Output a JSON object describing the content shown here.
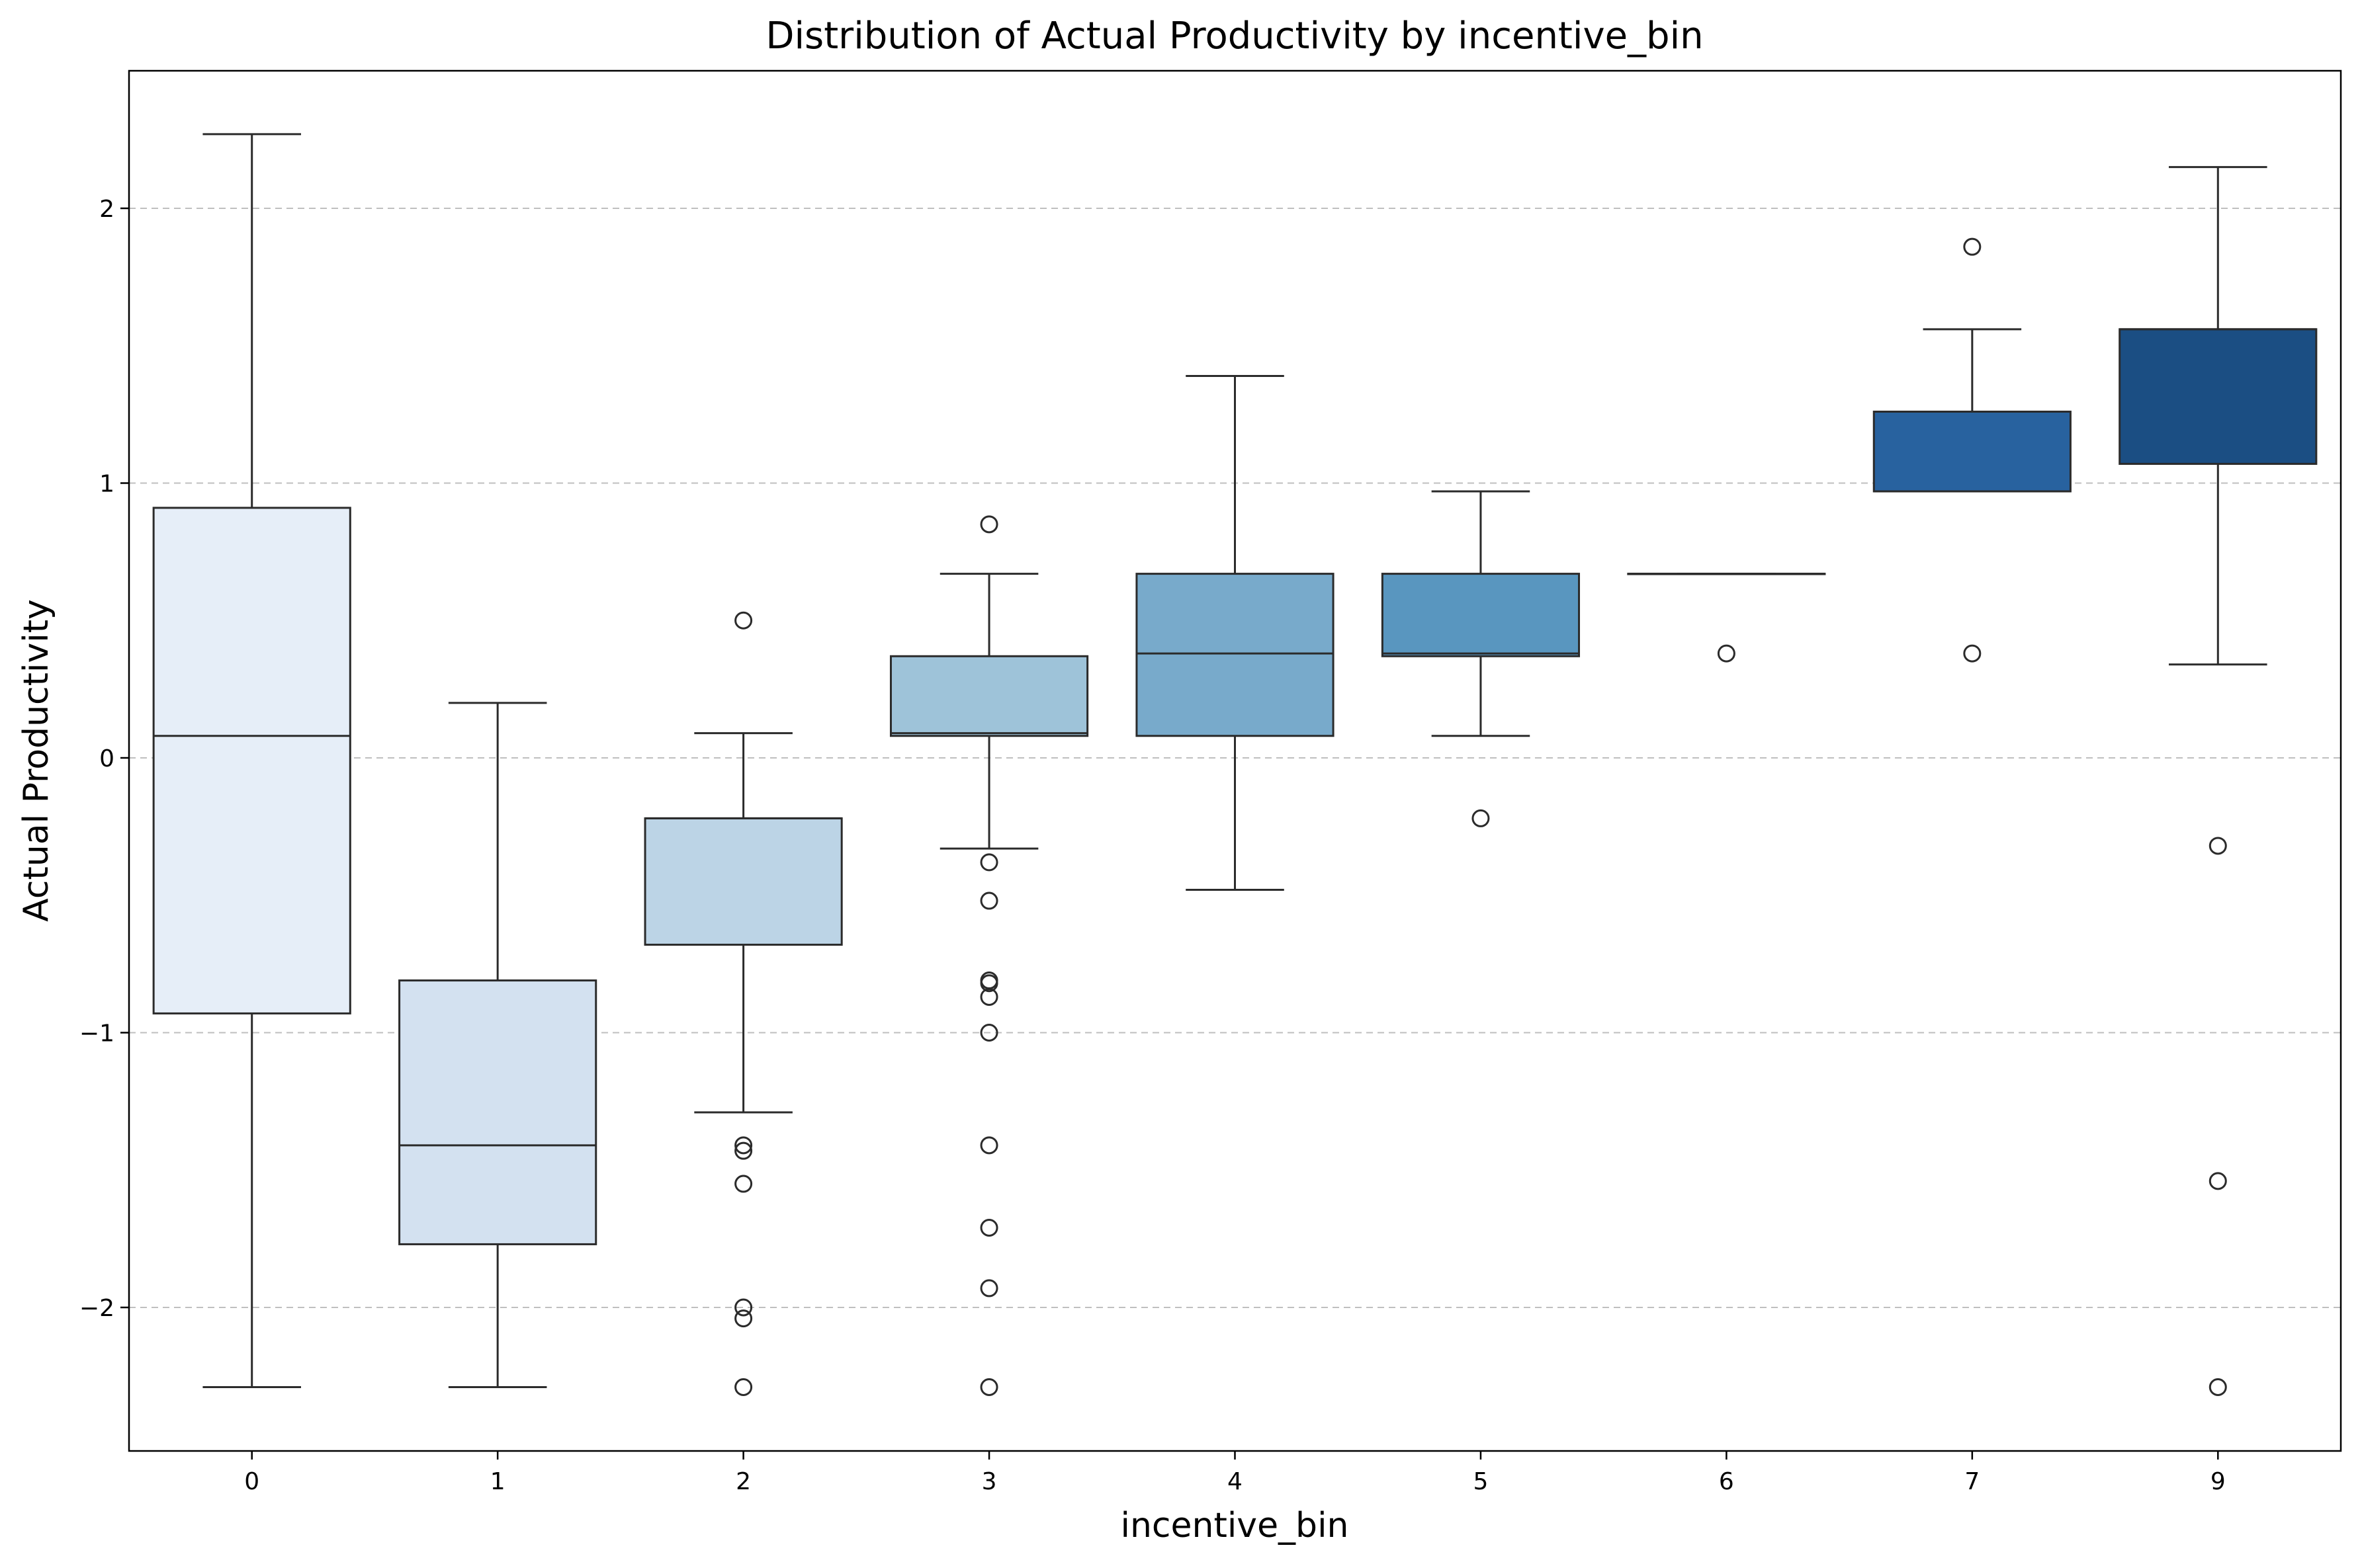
{
  "chart_data": {
    "type": "box",
    "title": "Distribution of Actual Productivity by incentive_bin",
    "xlabel": "incentive_bin",
    "ylabel": "Actual Productivity",
    "ylim": [
      -2.52,
      2.5
    ],
    "yticks": [
      -2,
      -1,
      0,
      1,
      2
    ],
    "ytick_labels": [
      "−2",
      "−1",
      "0",
      "1",
      "2"
    ],
    "grid": "y-dashed",
    "categories": [
      "0",
      "1",
      "2",
      "3",
      "4",
      "5",
      "6",
      "7",
      "9"
    ],
    "colors": [
      "#e6eef8",
      "#d3e1f0",
      "#bcd4e6",
      "#9ec3d9",
      "#78aacb",
      "#5996bf",
      "#3a7ab6",
      "#28629f",
      "#1b4e83"
    ],
    "boxes": [
      {
        "category": "0",
        "whisker_low": -2.29,
        "q1": -0.93,
        "median": 0.08,
        "q3": 0.91,
        "whisker_high": 2.27,
        "outliers": []
      },
      {
        "category": "1",
        "whisker_low": -2.29,
        "q1": -1.77,
        "median": -1.41,
        "q3": -0.81,
        "whisker_high": 0.2,
        "outliers": []
      },
      {
        "category": "2",
        "whisker_low": -1.29,
        "q1": -0.68,
        "median": -0.22,
        "q3": -0.22,
        "whisker_high": 0.09,
        "outliers": [
          0.5,
          -1.41,
          -1.43,
          -1.55,
          -2.0,
          -2.04,
          -2.29
        ]
      },
      {
        "category": "3",
        "whisker_low": -0.33,
        "q1": 0.08,
        "median": 0.09,
        "q3": 0.37,
        "whisker_high": 0.67,
        "outliers": [
          0.85,
          -0.38,
          -0.52,
          -0.81,
          -0.82,
          -0.87,
          -1.0,
          -1.41,
          -1.71,
          -1.93,
          -2.29
        ]
      },
      {
        "category": "4",
        "whisker_low": -0.48,
        "q1": 0.08,
        "median": 0.38,
        "q3": 0.67,
        "whisker_high": 1.39,
        "outliers": []
      },
      {
        "category": "5",
        "whisker_low": 0.08,
        "q1": 0.37,
        "median": 0.38,
        "q3": 0.67,
        "whisker_high": 0.97,
        "outliers": [
          -0.22
        ]
      },
      {
        "category": "6",
        "whisker_low": 0.67,
        "q1": 0.67,
        "median": 0.67,
        "q3": 0.67,
        "whisker_high": 0.67,
        "outliers": [
          0.38
        ]
      },
      {
        "category": "7",
        "whisker_low": 0.97,
        "q1": 0.97,
        "median": 0.97,
        "q3": 1.26,
        "whisker_high": 1.56,
        "outliers": [
          1.86,
          0.38
        ]
      },
      {
        "category": "9",
        "whisker_low": 0.34,
        "q1": 1.07,
        "median": 1.56,
        "q3": 1.56,
        "whisker_high": 2.15,
        "outliers": [
          -0.32,
          -1.54,
          -2.29
        ]
      }
    ]
  }
}
